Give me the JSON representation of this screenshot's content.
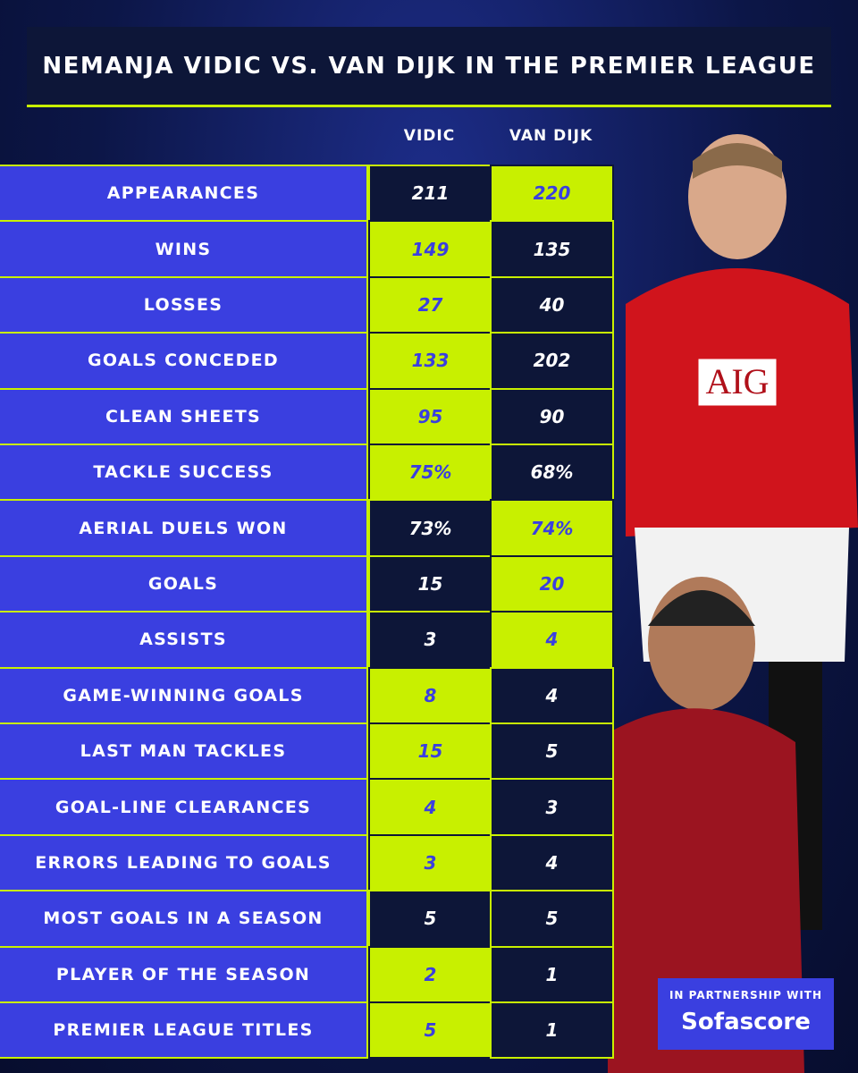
{
  "header": {
    "title": "NEMANJA VIDIC VS. VAN DIJK IN THE PREMIER LEAGUE"
  },
  "table": {
    "columns": [
      "VIDIC",
      "VAN DIJK"
    ],
    "rows": [
      {
        "label": "APPEARANCES",
        "values": [
          "211",
          "220"
        ],
        "highlight": 1
      },
      {
        "label": "WINS",
        "values": [
          "149",
          "135"
        ],
        "highlight": 0
      },
      {
        "label": "LOSSES",
        "values": [
          "27",
          "40"
        ],
        "highlight": 0
      },
      {
        "label": "GOALS CONCEDED",
        "values": [
          "133",
          "202"
        ],
        "highlight": 0
      },
      {
        "label": "CLEAN SHEETS",
        "values": [
          "95",
          "90"
        ],
        "highlight": 0
      },
      {
        "label": "TACKLE SUCCESS",
        "values": [
          "75%",
          "68%"
        ],
        "highlight": 0
      },
      {
        "label": "AERIAL DUELS WON",
        "values": [
          "73%",
          "74%"
        ],
        "highlight": 1
      },
      {
        "label": "GOALS",
        "values": [
          "15",
          "20"
        ],
        "highlight": 1
      },
      {
        "label": "ASSISTS",
        "values": [
          "3",
          "4"
        ],
        "highlight": 1
      },
      {
        "label": "GAME-WINNING GOALS",
        "values": [
          "8",
          "4"
        ],
        "highlight": 0
      },
      {
        "label": "LAST MAN TACKLES",
        "values": [
          "15",
          "5"
        ],
        "highlight": 0
      },
      {
        "label": "GOAL-LINE CLEARANCES",
        "values": [
          "4",
          "3"
        ],
        "highlight": 0
      },
      {
        "label": "ERRORS LEADING TO GOALS",
        "values": [
          "3",
          "4"
        ],
        "highlight": 0
      },
      {
        "label": "MOST GOALS IN A SEASON",
        "values": [
          "5",
          "5"
        ],
        "highlight": null
      },
      {
        "label": "PLAYER OF THE SEASON",
        "values": [
          "2",
          "1"
        ],
        "highlight": 0
      },
      {
        "label": "PREMIER LEAGUE TITLES",
        "values": [
          "5",
          "1"
        ],
        "highlight": 0
      }
    ]
  },
  "partner": {
    "caption": "IN PARTNERSHIP WITH",
    "name": "Sofascore"
  }
}
